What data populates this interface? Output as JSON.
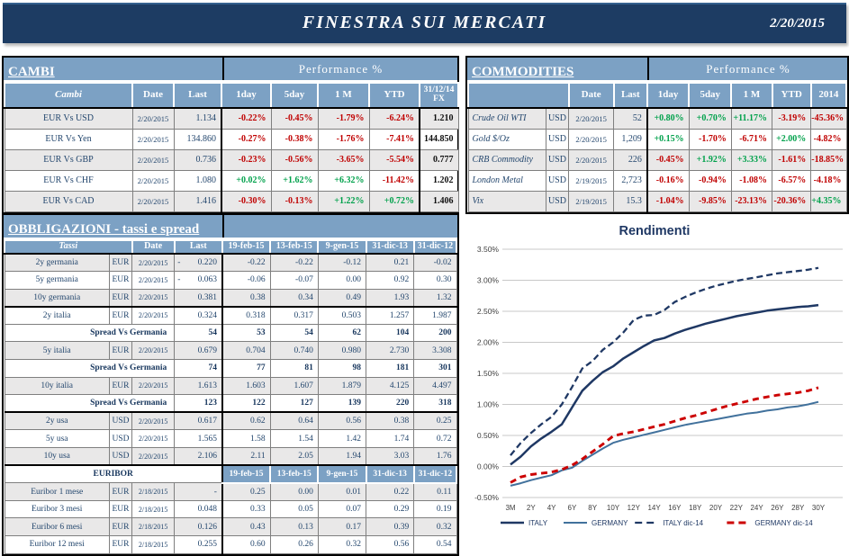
{
  "header": {
    "title": "FINESTRA SUI MERCATI",
    "date": "2/20/2015"
  },
  "colors": {
    "header_navy": "#1D3C63",
    "table_header_blue": "#7CA1C4",
    "stripe_gray": "#E9E8E8",
    "negative_red": "#C00000",
    "positive_green": "#00A14B",
    "navy_text": "#17365D",
    "italy_line": "#1F3864",
    "germany_line": "#41719C",
    "germany_dic14_line": "#CC0000"
  },
  "cambi": {
    "title": "CAMBI",
    "performance_label": "Performance  %",
    "columns": [
      "Cambi",
      "Date",
      "Last",
      "1day",
      "5day",
      "1 M",
      "YTD",
      "31/12/14\nFX"
    ],
    "rows": [
      {
        "label": "EUR Vs USD",
        "date": "2/20/2015",
        "last": "1.134",
        "perf": [
          "-0.22%",
          "-0.45%",
          "-1.79%",
          "-6.24%"
        ],
        "fx": "1.210"
      },
      {
        "label": "EUR Vs Yen",
        "date": "2/20/2015",
        "last": "134.860",
        "perf": [
          "-0.27%",
          "-0.38%",
          "-1.76%",
          "-7.41%"
        ],
        "fx": "144.850"
      },
      {
        "label": "EUR Vs GBP",
        "date": "2/20/2015",
        "last": "0.736",
        "perf": [
          "-0.23%",
          "-0.56%",
          "-3.65%",
          "-5.54%"
        ],
        "fx": "0.777"
      },
      {
        "label": "EUR Vs CHF",
        "date": "2/20/2015",
        "last": "1.080",
        "perf": [
          "+0.02%",
          "+1.62%",
          "+6.32%",
          "-11.42%"
        ],
        "fx": "1.202"
      },
      {
        "label": "EUR Vs CAD",
        "date": "2/20/2015",
        "last": "1.416",
        "perf": [
          "-0.30%",
          "-0.13%",
          "+1.22%",
          "+0.72%"
        ],
        "fx": "1.406"
      }
    ]
  },
  "commodities": {
    "title": "COMMODITIES",
    "performance_label": "Performance  %",
    "columns": [
      "Date",
      "Last",
      "1day",
      "5day",
      "1 M",
      "YTD",
      "2014"
    ],
    "rows": [
      {
        "label": "Crude Oil WTI",
        "ccy": "USD",
        "date": "2/20/2015",
        "last": "52",
        "perf": [
          "+0.80%",
          "+0.70%",
          "+11.17%",
          "-3.19%",
          "-45.36%"
        ]
      },
      {
        "label": "Gold $/Oz",
        "ccy": "USD",
        "date": "2/20/2015",
        "last": "1,209",
        "perf": [
          "+0.15%",
          "-1.70%",
          "-6.71%",
          "+2.00%",
          "-4.82%"
        ]
      },
      {
        "label": "CRB Commodity",
        "ccy": "USD",
        "date": "2/20/2015",
        "last": "226",
        "perf": [
          "-0.45%",
          "+1.92%",
          "+3.33%",
          "-1.61%",
          "-18.85%"
        ]
      },
      {
        "label": "London Metal",
        "ccy": "USD",
        "date": "2/19/2015",
        "last": "2,723",
        "perf": [
          "-0.16%",
          "-0.94%",
          "-1.08%",
          "-6.57%",
          "-4.18%"
        ]
      },
      {
        "label": "Vix",
        "ccy": "USD",
        "date": "2/19/2015",
        "last": "15.3",
        "perf": [
          "-1.04%",
          "-9.85%",
          "-23.13%",
          "-20.36%",
          "+4.35%"
        ]
      }
    ]
  },
  "obbligazioni": {
    "title": "OBBLIGAZIONI - tassi e spread",
    "tassi_label": "Tassi",
    "date_label": "Date",
    "last_label": "Last",
    "euribor_label": "EURIBOR",
    "date_columns": [
      "19-feb-15",
      "13-feb-15",
      "9-gen-15",
      "31-dic-13",
      "31-dic-12"
    ],
    "rows": [
      {
        "type": "rate",
        "label": "2y germania",
        "ccy": "EUR",
        "date": "2/20/2015",
        "minus": "-",
        "last": "0.220",
        "vals": [
          "-0.22",
          "-0.22",
          "-0.12",
          "0.21",
          "-0.02"
        ],
        "shade": true
      },
      {
        "type": "rate",
        "label": "5y germania",
        "ccy": "EUR",
        "date": "2/20/2015",
        "minus": "-",
        "last": "0.063",
        "vals": [
          "-0.06",
          "-0.07",
          "0.00",
          "0.92",
          "0.30"
        ]
      },
      {
        "type": "rate",
        "label": "10y germania",
        "ccy": "EUR",
        "date": "2/20/2015",
        "last": "0.381",
        "vals": [
          "0.38",
          "0.34",
          "0.49",
          "1.93",
          "1.32"
        ],
        "shade": true,
        "sep": true
      },
      {
        "type": "rate",
        "label": "2y italia",
        "ccy": "EUR",
        "date": "2/20/2015",
        "last": "0.324",
        "vals": [
          "0.318",
          "0.317",
          "0.503",
          "1.257",
          "1.987"
        ]
      },
      {
        "type": "spread",
        "label": "Spread Vs Germania",
        "last": "54",
        "vals": [
          "53",
          "54",
          "62",
          "104",
          "200"
        ]
      },
      {
        "type": "rate",
        "label": "5y italia",
        "ccy": "EUR",
        "date": "2/20/2015",
        "last": "0.679",
        "vals": [
          "0.704",
          "0.740",
          "0.980",
          "2.730",
          "3.308"
        ],
        "shade": true
      },
      {
        "type": "spread",
        "label": "Spread Vs Germania",
        "last": "74",
        "vals": [
          "77",
          "81",
          "98",
          "181",
          "301"
        ]
      },
      {
        "type": "rate",
        "label": "10y italia",
        "ccy": "EUR",
        "date": "2/20/2015",
        "last": "1.613",
        "vals": [
          "1.603",
          "1.607",
          "1.879",
          "4.125",
          "4.497"
        ],
        "shade": true
      },
      {
        "type": "spread",
        "label": "Spread Vs Germania",
        "last": "123",
        "vals": [
          "122",
          "127",
          "139",
          "220",
          "318"
        ],
        "sep": true
      },
      {
        "type": "rate",
        "label": "2y usa",
        "ccy": "USD",
        "date": "2/20/2015",
        "last": "0.617",
        "vals": [
          "0.62",
          "0.64",
          "0.56",
          "0.38",
          "0.25"
        ],
        "shade": true
      },
      {
        "type": "rate",
        "label": "5y usa",
        "ccy": "USD",
        "date": "2/20/2015",
        "last": "1.565",
        "vals": [
          "1.58",
          "1.54",
          "1.42",
          "1.74",
          "0.72"
        ]
      },
      {
        "type": "rate",
        "label": "10y usa",
        "ccy": "USD",
        "date": "2/20/2015",
        "last": "2.106",
        "vals": [
          "2.11",
          "2.05",
          "1.94",
          "3.03",
          "1.76"
        ],
        "shade": true,
        "sep": true
      },
      {
        "type": "euribor_header"
      },
      {
        "type": "rate",
        "label": "Euribor 1 mese",
        "ccy": "EUR",
        "date": "2/18/2015",
        "last": "-",
        "vals": [
          "0.25",
          "0.00",
          "0.01",
          "0.22",
          "0.11"
        ],
        "shade": true
      },
      {
        "type": "rate",
        "label": "Euribor 3 mesi",
        "ccy": "EUR",
        "date": "2/18/2015",
        "last": "0.048",
        "vals": [
          "0.33",
          "0.05",
          "0.07",
          "0.29",
          "0.19"
        ]
      },
      {
        "type": "rate",
        "label": "Euribor 6 mesi",
        "ccy": "EUR",
        "date": "2/18/2015",
        "last": "0.126",
        "vals": [
          "0.43",
          "0.13",
          "0.17",
          "0.39",
          "0.32"
        ],
        "shade": true
      },
      {
        "type": "rate",
        "label": "Euribor 12 mesi",
        "ccy": "EUR",
        "date": "2/18/2015",
        "last": "0.255",
        "vals": [
          "0.60",
          "0.26",
          "0.32",
          "0.56",
          "0.54"
        ]
      }
    ]
  },
  "chart_data": {
    "type": "line",
    "title": "Rendimenti",
    "ylim": [
      -0.5,
      3.5
    ],
    "ytick_step": 0.5,
    "grid": true,
    "legend_position": "bottom",
    "x_tick_every": 2,
    "x_full": [
      "3M",
      "1Y",
      "2Y",
      "3Y",
      "4Y",
      "5Y",
      "6Y",
      "7Y",
      "8Y",
      "9Y",
      "10Y",
      "11Y",
      "12Y",
      "13Y",
      "14Y",
      "15Y",
      "16Y",
      "17Y",
      "18Y",
      "19Y",
      "20Y",
      "21Y",
      "22Y",
      "23Y",
      "24Y",
      "25Y",
      "26Y",
      "27Y",
      "28Y",
      "29Y",
      "30Y"
    ],
    "series": [
      {
        "name": "ITALY",
        "color": "#1F3864",
        "dash": "solid",
        "width": 2.5,
        "values": [
          0.03,
          0.16,
          0.324,
          0.45,
          0.56,
          0.679,
          0.95,
          1.22,
          1.38,
          1.52,
          1.613,
          1.74,
          1.84,
          1.94,
          2.03,
          2.07,
          2.14,
          2.2,
          2.25,
          2.3,
          2.34,
          2.38,
          2.42,
          2.45,
          2.48,
          2.51,
          2.53,
          2.55,
          2.57,
          2.58,
          2.6
        ]
      },
      {
        "name": "GERMANY",
        "color": "#41719C",
        "dash": "solid",
        "width": 2,
        "values": [
          -0.31,
          -0.27,
          -0.22,
          -0.18,
          -0.14,
          -0.063,
          -0.02,
          0.09,
          0.19,
          0.29,
          0.381,
          0.43,
          0.47,
          0.51,
          0.55,
          0.59,
          0.63,
          0.67,
          0.7,
          0.73,
          0.76,
          0.79,
          0.82,
          0.85,
          0.87,
          0.9,
          0.92,
          0.95,
          0.97,
          1.0,
          1.04
        ]
      },
      {
        "name": "ITALY dic-14",
        "color": "#1F3864",
        "dash": "dashed",
        "width": 2.3,
        "values": [
          0.18,
          0.38,
          0.54,
          0.68,
          0.8,
          1.0,
          1.28,
          1.58,
          1.7,
          1.88,
          2.0,
          2.16,
          2.36,
          2.43,
          2.44,
          2.52,
          2.65,
          2.73,
          2.8,
          2.86,
          2.91,
          2.95,
          2.99,
          3.02,
          3.05,
          3.08,
          3.11,
          3.13,
          3.15,
          3.17,
          3.2
        ]
      },
      {
        "name": "GERMANY dic-14",
        "color": "#CC0000",
        "dash": "dashed",
        "width": 2.9,
        "values": [
          -0.26,
          -0.17,
          -0.13,
          -0.11,
          -0.09,
          -0.05,
          0.02,
          0.12,
          0.24,
          0.36,
          0.49,
          0.53,
          0.56,
          0.6,
          0.64,
          0.68,
          0.73,
          0.78,
          0.82,
          0.87,
          0.92,
          0.97,
          1.01,
          1.05,
          1.09,
          1.12,
          1.15,
          1.17,
          1.19,
          1.22,
          1.27
        ]
      }
    ]
  }
}
